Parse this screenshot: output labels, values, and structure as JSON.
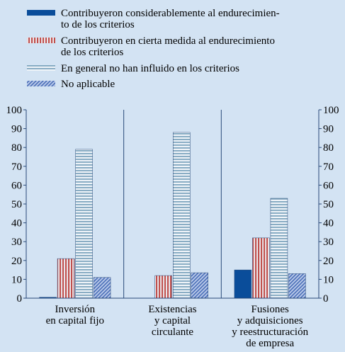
{
  "chart_data": {
    "type": "bar",
    "categories": [
      "Inversión\nen capital fijo",
      "Existencias\ny capital\ncirculante",
      "Fusiones\ny adquisiciones\ny reestructuración\nde empresa"
    ],
    "series": [
      {
        "name": "Contribuyeron considerablemente al endurecimien-\nto de los criterios",
        "color": "#0a4d9a",
        "pattern": "solid",
        "values": [
          0.5,
          0,
          15
        ]
      },
      {
        "name": "Contribuyeron en cierta medida al endurecimiento\nde los criterios",
        "color": "#c0504d",
        "pattern": "vertical",
        "values": [
          21,
          12,
          32
        ]
      },
      {
        "name": "En general no han influido en los criterios",
        "color": "#7fa6bf",
        "pattern": "horizontal",
        "values": [
          79,
          88,
          53
        ]
      },
      {
        "name": "No aplicable",
        "color": "#4a6fb8",
        "pattern": "diagonal",
        "values": [
          11,
          13.5,
          13
        ]
      }
    ],
    "ylim": [
      0,
      100
    ],
    "yticks": [
      0,
      10,
      20,
      30,
      40,
      50,
      60,
      70,
      80,
      90,
      100
    ],
    "y2lim": [
      0,
      100
    ],
    "y2ticks": [
      0,
      10,
      20,
      30,
      40,
      50,
      60,
      70,
      80,
      90,
      100
    ]
  }
}
